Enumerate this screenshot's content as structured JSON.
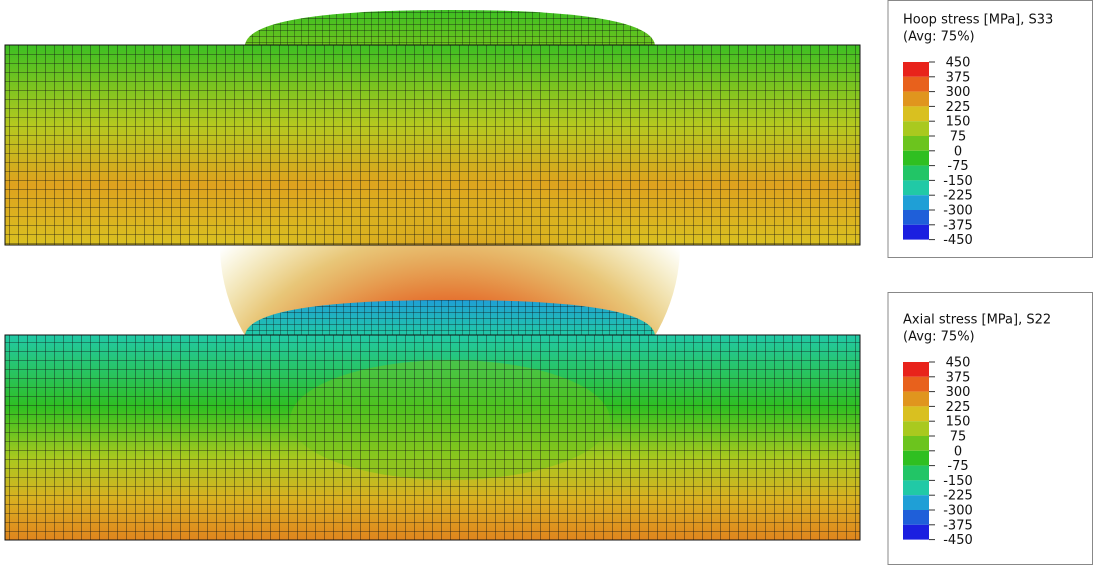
{
  "panels": [
    {
      "legend": {
        "title": "Hoop stress [MPa], S33",
        "subtitle": "(Avg: 75%)",
        "ticks": [
          450,
          375,
          300,
          225,
          150,
          75,
          0,
          -75,
          -150,
          -225,
          -300,
          -375,
          -450
        ],
        "colors": [
          "#e8231b",
          "#e8611c",
          "#e0951e",
          "#d9c020",
          "#a9c91f",
          "#6cc41e",
          "#2fbf21",
          "#22c566",
          "#21c9a6",
          "#1f9fd6",
          "#1f5fd9",
          "#1b1fe0"
        ]
      }
    },
    {
      "legend": {
        "title": "Axial stress [MPa], S22",
        "subtitle": "(Avg: 75%)",
        "ticks": [
          450,
          375,
          300,
          225,
          150,
          75,
          0,
          -75,
          -150,
          -225,
          -300,
          -375,
          -450
        ],
        "colors": [
          "#e8231b",
          "#e8611c",
          "#e0951e",
          "#d9c020",
          "#a9c91f",
          "#6cc41e",
          "#2fbf21",
          "#22c566",
          "#21c9a6",
          "#1f9fd6",
          "#1f5fd9",
          "#1b1fe0"
        ]
      }
    }
  ]
}
